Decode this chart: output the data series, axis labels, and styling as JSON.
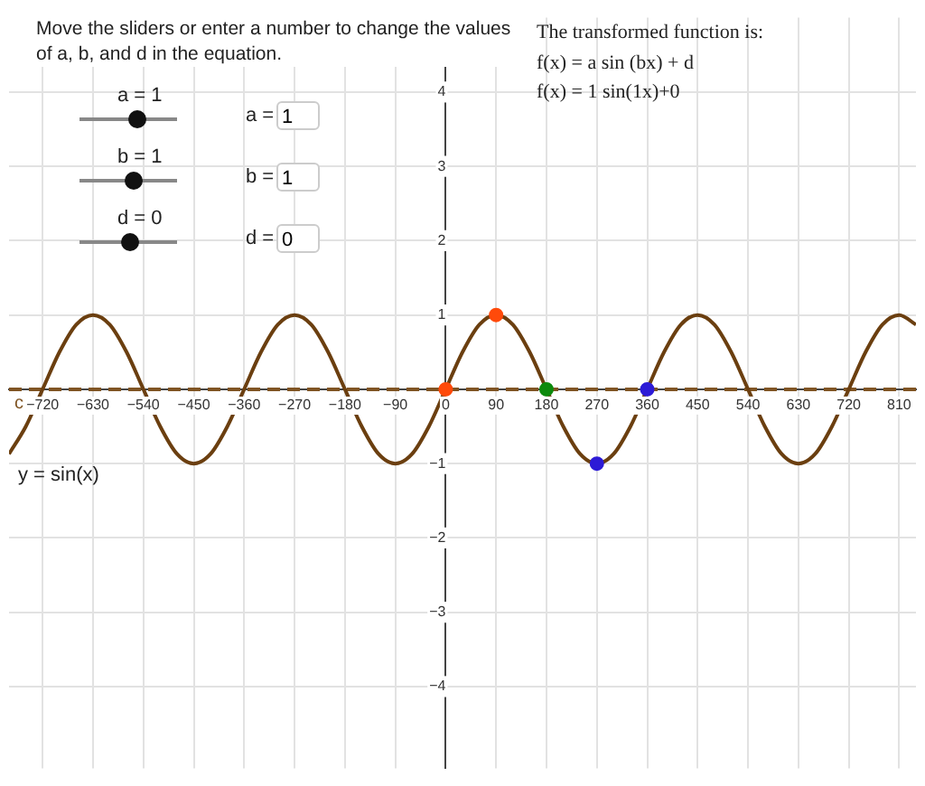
{
  "chart_data": {
    "type": "line",
    "xlim": [
      -780,
      840
    ],
    "ylim": [
      -5.1,
      5
    ],
    "xticks": [
      -720,
      -630,
      -540,
      -450,
      -360,
      -270,
      -180,
      -90,
      0,
      90,
      180,
      270,
      360,
      450,
      540,
      630,
      720,
      810
    ],
    "yticks": [
      -4,
      -3,
      -2,
      -1,
      1,
      2,
      3,
      4
    ],
    "grid": true,
    "legend": false,
    "series": [
      {
        "type": "line",
        "color": "#6b3f10",
        "marker": "none",
        "x": [
          -780,
          -750,
          -720,
          -690,
          -660,
          -630,
          -600,
          -570,
          -540,
          -510,
          -480,
          -450,
          -420,
          -390,
          -360,
          -330,
          -300,
          -270,
          -240,
          -210,
          -180,
          -150,
          -120,
          -90,
          -60,
          -30,
          0,
          30,
          60,
          90,
          120,
          150,
          180,
          210,
          240,
          270,
          300,
          330,
          360,
          390,
          420,
          450,
          480,
          510,
          540,
          570,
          600,
          630,
          660,
          690,
          720,
          750,
          780,
          810,
          840
        ],
        "values": [
          -0.87,
          -0.5,
          0,
          0.5,
          0.87,
          1,
          0.87,
          0.5,
          0,
          -0.5,
          -0.87,
          -1,
          -0.87,
          -0.5,
          0,
          0.5,
          0.87,
          1,
          0.87,
          0.5,
          0,
          -0.5,
          -0.87,
          -1,
          -0.87,
          -0.5,
          0,
          0.5,
          0.87,
          1,
          0.87,
          0.5,
          0,
          -0.5,
          -0.87,
          -1,
          -0.87,
          -0.5,
          0,
          0.5,
          0.87,
          1,
          0.87,
          0.5,
          0,
          -0.5,
          -0.87,
          -1,
          -0.87,
          -0.5,
          0,
          0.5,
          0.87,
          1,
          0.87
        ]
      },
      {
        "type": "scatter",
        "marker": "circle",
        "x": [
          0,
          90,
          180,
          270,
          360
        ],
        "values": [
          0,
          1,
          0,
          -1,
          0
        ],
        "colors": [
          "#ff4a0a",
          "#ff4a0a",
          "#0d8a0d",
          "#2d1bd6",
          "#2d1bd6"
        ]
      }
    ],
    "ref_lines": [
      {
        "axis": "y",
        "value": 0,
        "label": "c",
        "color": "#7f5423",
        "line_style": "dashed"
      }
    ],
    "annotations": [
      "Move the sliders or enter a number to change the values of a, b, and d in the equation.",
      "The transformed function is:",
      "f(x) = a sin (bx) + d",
      "f(x) = 1 sin(1x)+0",
      "y = sin(x)",
      "a = 1",
      "b = 1",
      "d = 0",
      "a =",
      "b =",
      "d =",
      "1",
      "1",
      "0"
    ]
  }
}
